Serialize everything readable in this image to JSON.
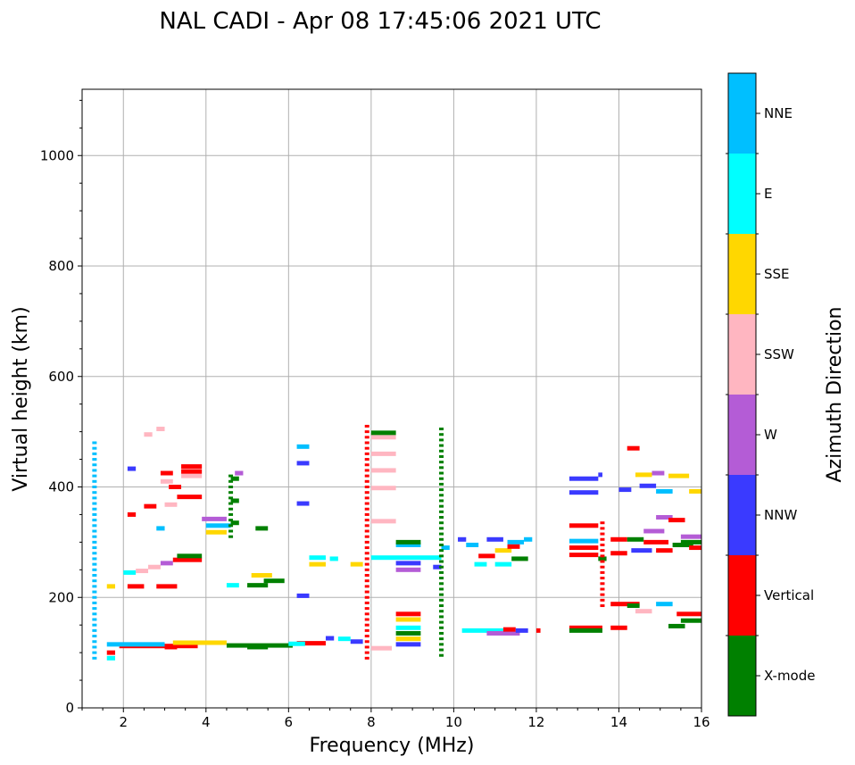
{
  "chart_data": {
    "type": "scatter",
    "title": "NAL CADI - Apr 08 17:45:06 2021 UTC",
    "xlabel": "Frequency (MHz)",
    "ylabel": "Virtual height (km)",
    "xlim": [
      1,
      16
    ],
    "ylim": [
      0,
      1120
    ],
    "xticks": [
      2,
      4,
      6,
      8,
      10,
      12,
      14,
      16
    ],
    "yticks": [
      0,
      200,
      400,
      600,
      800,
      1000
    ],
    "grid": true,
    "colorbar": {
      "label": "Azimuth Direction",
      "categories": [
        {
          "name": "X-mode",
          "color": "#008000"
        },
        {
          "name": "Vertical",
          "color": "#ff0000"
        },
        {
          "name": "NNW",
          "color": "#3a3aff"
        },
        {
          "name": "W",
          "color": "#b45cd6"
        },
        {
          "name": "SSW",
          "color": "#ffb6c1"
        },
        {
          "name": "SSE",
          "color": "#ffd700"
        },
        {
          "name": "E",
          "color": "#00ffff"
        },
        {
          "name": "NNE",
          "color": "#00bfff"
        }
      ]
    },
    "segments": [
      {
        "f1": 1.9,
        "f2": 3.8,
        "h": 112,
        "c": "Vertical"
      },
      {
        "f1": 3.0,
        "f2": 3.3,
        "h": 110,
        "c": "Vertical"
      },
      {
        "f1": 1.6,
        "f2": 3.0,
        "h": 115,
        "c": "NNE"
      },
      {
        "f1": 3.2,
        "f2": 4.5,
        "h": 118,
        "c": "SSE"
      },
      {
        "f1": 4.5,
        "f2": 6.1,
        "h": 113,
        "c": "X-mode"
      },
      {
        "f1": 5.0,
        "f2": 5.5,
        "h": 110,
        "c": "X-mode"
      },
      {
        "f1": 6.2,
        "f2": 6.9,
        "h": 117,
        "c": "Vertical"
      },
      {
        "f1": 6.0,
        "f2": 6.4,
        "h": 116,
        "c": "E"
      },
      {
        "f1": 6.9,
        "f2": 7.1,
        "h": 126,
        "c": "NNW"
      },
      {
        "f1": 7.5,
        "f2": 7.8,
        "h": 120,
        "c": "NNW"
      },
      {
        "f1": 7.2,
        "f2": 7.5,
        "h": 125,
        "c": "E"
      },
      {
        "f1": 1.6,
        "f2": 1.8,
        "h": 100,
        "c": "Vertical"
      },
      {
        "f1": 1.6,
        "f2": 1.8,
        "h": 90,
        "c": "E"
      },
      {
        "f1": 8.0,
        "f2": 8.5,
        "h": 108,
        "c": "SSW"
      },
      {
        "f1": 8.6,
        "f2": 9.2,
        "h": 170,
        "c": "Vertical"
      },
      {
        "f1": 8.6,
        "f2": 9.2,
        "h": 160,
        "c": "SSE"
      },
      {
        "f1": 8.6,
        "f2": 9.2,
        "h": 145,
        "c": "E"
      },
      {
        "f1": 8.6,
        "f2": 9.2,
        "h": 135,
        "c": "X-mode"
      },
      {
        "f1": 8.6,
        "f2": 9.2,
        "h": 125,
        "c": "SSE"
      },
      {
        "f1": 8.6,
        "f2": 9.2,
        "h": 115,
        "c": "NNW"
      },
      {
        "f1": 10.2,
        "f2": 11.2,
        "h": 140,
        "c": "E"
      },
      {
        "f1": 10.8,
        "f2": 11.6,
        "h": 135,
        "c": "W"
      },
      {
        "f1": 11.2,
        "f2": 11.5,
        "h": 142,
        "c": "Vertical"
      },
      {
        "f1": 11.5,
        "f2": 11.8,
        "h": 140,
        "c": "NNW"
      },
      {
        "f1": 12.0,
        "f2": 12.1,
        "h": 140,
        "c": "Vertical"
      },
      {
        "f1": 12.8,
        "f2": 13.6,
        "h": 145,
        "c": "Vertical"
      },
      {
        "f1": 12.8,
        "f2": 13.6,
        "h": 140,
        "c": "X-mode"
      },
      {
        "f1": 13.8,
        "f2": 14.2,
        "h": 145,
        "c": "Vertical"
      },
      {
        "f1": 13.8,
        "f2": 14.5,
        "h": 188,
        "c": "Vertical"
      },
      {
        "f1": 14.2,
        "f2": 14.5,
        "h": 185,
        "c": "X-mode"
      },
      {
        "f1": 14.4,
        "f2": 14.8,
        "h": 175,
        "c": "SSW"
      },
      {
        "f1": 14.9,
        "f2": 15.3,
        "h": 188,
        "c": "NNE"
      },
      {
        "f1": 15.4,
        "f2": 16.0,
        "h": 170,
        "c": "Vertical"
      },
      {
        "f1": 15.5,
        "f2": 16.0,
        "h": 158,
        "c": "X-mode"
      },
      {
        "f1": 15.2,
        "f2": 15.6,
        "h": 148,
        "c": "X-mode"
      },
      {
        "f1": 1.6,
        "f2": 1.8,
        "h": 220,
        "c": "SSE"
      },
      {
        "f1": 2.1,
        "f2": 2.5,
        "h": 220,
        "c": "Vertical"
      },
      {
        "f1": 2.8,
        "f2": 3.3,
        "h": 220,
        "c": "Vertical"
      },
      {
        "f1": 2.0,
        "f2": 2.3,
        "h": 245,
        "c": "E"
      },
      {
        "f1": 2.3,
        "f2": 2.6,
        "h": 248,
        "c": "SSW"
      },
      {
        "f1": 2.6,
        "f2": 2.9,
        "h": 255,
        "c": "SSW"
      },
      {
        "f1": 2.9,
        "f2": 3.2,
        "h": 262,
        "c": "W"
      },
      {
        "f1": 3.2,
        "f2": 3.9,
        "h": 268,
        "c": "Vertical"
      },
      {
        "f1": 3.3,
        "f2": 3.9,
        "h": 275,
        "c": "X-mode"
      },
      {
        "f1": 4.0,
        "f2": 4.5,
        "h": 318,
        "c": "SSE"
      },
      {
        "f1": 4.0,
        "f2": 4.6,
        "h": 330,
        "c": "NNE"
      },
      {
        "f1": 3.9,
        "f2": 4.5,
        "h": 342,
        "c": "W"
      },
      {
        "f1": 4.6,
        "f2": 4.8,
        "h": 335,
        "c": "X-mode"
      },
      {
        "f1": 4.5,
        "f2": 4.8,
        "h": 222,
        "c": "E"
      },
      {
        "f1": 5.0,
        "f2": 5.5,
        "h": 222,
        "c": "X-mode"
      },
      {
        "f1": 5.4,
        "f2": 5.9,
        "h": 230,
        "c": "X-mode"
      },
      {
        "f1": 5.1,
        "f2": 5.6,
        "h": 240,
        "c": "SSE"
      },
      {
        "f1": 5.2,
        "f2": 5.5,
        "h": 325,
        "c": "X-mode"
      },
      {
        "f1": 3.3,
        "f2": 3.9,
        "h": 382,
        "c": "Vertical"
      },
      {
        "f1": 3.0,
        "f2": 3.3,
        "h": 368,
        "c": "SSW"
      },
      {
        "f1": 3.4,
        "f2": 3.9,
        "h": 420,
        "c": "SSW"
      },
      {
        "f1": 3.4,
        "f2": 3.9,
        "h": 428,
        "c": "Vertical"
      },
      {
        "f1": 3.4,
        "f2": 3.9,
        "h": 437,
        "c": "Vertical"
      },
      {
        "f1": 2.9,
        "f2": 3.2,
        "h": 425,
        "c": "Vertical"
      },
      {
        "f1": 2.9,
        "f2": 3.2,
        "h": 410,
        "c": "SSW"
      },
      {
        "f1": 3.1,
        "f2": 3.4,
        "h": 400,
        "c": "Vertical"
      },
      {
        "f1": 2.1,
        "f2": 2.3,
        "h": 350,
        "c": "Vertical"
      },
      {
        "f1": 2.5,
        "f2": 2.8,
        "h": 365,
        "c": "Vertical"
      },
      {
        "f1": 2.8,
        "f2": 3.0,
        "h": 325,
        "c": "NNE"
      },
      {
        "f1": 2.5,
        "f2": 2.7,
        "h": 495,
        "c": "SSW"
      },
      {
        "f1": 2.8,
        "f2": 3.0,
        "h": 505,
        "c": "SSW"
      },
      {
        "f1": 4.6,
        "f2": 4.8,
        "h": 415,
        "c": "X-mode"
      },
      {
        "f1": 4.7,
        "f2": 4.9,
        "h": 425,
        "c": "W"
      },
      {
        "f1": 4.6,
        "f2": 4.8,
        "h": 375,
        "c": "X-mode"
      },
      {
        "f1": 2.1,
        "f2": 2.3,
        "h": 433,
        "c": "NNW"
      },
      {
        "f1": 6.2,
        "f2": 6.5,
        "h": 370,
        "c": "NNW"
      },
      {
        "f1": 6.2,
        "f2": 6.5,
        "h": 443,
        "c": "NNW"
      },
      {
        "f1": 6.2,
        "f2": 6.5,
        "h": 473,
        "c": "NNE"
      },
      {
        "f1": 6.2,
        "f2": 6.5,
        "h": 203,
        "c": "NNW"
      },
      {
        "f1": 6.5,
        "f2": 6.9,
        "h": 272,
        "c": "E"
      },
      {
        "f1": 6.5,
        "f2": 6.9,
        "h": 260,
        "c": "SSE"
      },
      {
        "f1": 7.0,
        "f2": 7.2,
        "h": 270,
        "c": "E"
      },
      {
        "f1": 7.5,
        "f2": 7.8,
        "h": 260,
        "c": "SSE"
      },
      {
        "f1": 8.0,
        "f2": 8.6,
        "h": 490,
        "c": "SSW"
      },
      {
        "f1": 8.0,
        "f2": 8.6,
        "h": 498,
        "c": "X-mode"
      },
      {
        "f1": 8.0,
        "f2": 8.6,
        "h": 430,
        "c": "SSW"
      },
      {
        "f1": 8.0,
        "f2": 8.6,
        "h": 460,
        "c": "SSW"
      },
      {
        "f1": 8.0,
        "f2": 8.6,
        "h": 398,
        "c": "SSW"
      },
      {
        "f1": 8.0,
        "f2": 8.6,
        "h": 338,
        "c": "SSW"
      },
      {
        "f1": 8.0,
        "f2": 9.7,
        "h": 272,
        "c": "E"
      },
      {
        "f1": 8.6,
        "f2": 9.2,
        "h": 295,
        "c": "NNE"
      },
      {
        "f1": 8.6,
        "f2": 9.2,
        "h": 300,
        "c": "X-mode"
      },
      {
        "f1": 8.6,
        "f2": 9.2,
        "h": 262,
        "c": "NNW"
      },
      {
        "f1": 8.6,
        "f2": 9.2,
        "h": 250,
        "c": "W"
      },
      {
        "f1": 9.5,
        "f2": 9.7,
        "h": 255,
        "c": "NNW"
      },
      {
        "f1": 9.7,
        "f2": 9.9,
        "h": 290,
        "c": "NNE"
      },
      {
        "f1": 10.3,
        "f2": 10.6,
        "h": 295,
        "c": "NNE"
      },
      {
        "f1": 10.5,
        "f2": 10.8,
        "h": 260,
        "c": "E"
      },
      {
        "f1": 10.6,
        "f2": 11.0,
        "h": 275,
        "c": "Vertical"
      },
      {
        "f1": 10.8,
        "f2": 11.2,
        "h": 305,
        "c": "NNW"
      },
      {
        "f1": 11.0,
        "f2": 11.4,
        "h": 260,
        "c": "E"
      },
      {
        "f1": 11.0,
        "f2": 11.4,
        "h": 285,
        "c": "SSE"
      },
      {
        "f1": 11.3,
        "f2": 11.7,
        "h": 300,
        "c": "NNE"
      },
      {
        "f1": 11.3,
        "f2": 11.6,
        "h": 292,
        "c": "Vertical"
      },
      {
        "f1": 11.4,
        "f2": 11.8,
        "h": 270,
        "c": "X-mode"
      },
      {
        "f1": 11.7,
        "f2": 11.9,
        "h": 305,
        "c": "NNE"
      },
      {
        "f1": 10.1,
        "f2": 10.3,
        "h": 305,
        "c": "NNW"
      },
      {
        "f1": 12.8,
        "f2": 13.5,
        "h": 302,
        "c": "NNE"
      },
      {
        "f1": 12.8,
        "f2": 13.5,
        "h": 277,
        "c": "Vertical"
      },
      {
        "f1": 12.8,
        "f2": 13.5,
        "h": 290,
        "c": "Vertical"
      },
      {
        "f1": 13.5,
        "f2": 13.7,
        "h": 270,
        "c": "X-mode"
      },
      {
        "f1": 13.8,
        "f2": 14.2,
        "h": 305,
        "c": "Vertical"
      },
      {
        "f1": 13.8,
        "f2": 14.2,
        "h": 280,
        "c": "Vertical"
      },
      {
        "f1": 14.2,
        "f2": 14.6,
        "h": 305,
        "c": "X-mode"
      },
      {
        "f1": 14.3,
        "f2": 14.8,
        "h": 285,
        "c": "NNW"
      },
      {
        "f1": 14.6,
        "f2": 15.2,
        "h": 300,
        "c": "Vertical"
      },
      {
        "f1": 14.9,
        "f2": 15.3,
        "h": 285,
        "c": "Vertical"
      },
      {
        "f1": 15.3,
        "f2": 15.8,
        "h": 295,
        "c": "X-mode"
      },
      {
        "f1": 15.5,
        "f2": 16.0,
        "h": 310,
        "c": "W"
      },
      {
        "f1": 15.5,
        "f2": 16.0,
        "h": 300,
        "c": "X-mode"
      },
      {
        "f1": 15.7,
        "f2": 16.0,
        "h": 290,
        "c": "Vertical"
      },
      {
        "f1": 14.6,
        "f2": 15.1,
        "h": 320,
        "c": "W"
      },
      {
        "f1": 14.9,
        "f2": 15.3,
        "h": 345,
        "c": "W"
      },
      {
        "f1": 15.2,
        "f2": 15.6,
        "h": 340,
        "c": "Vertical"
      },
      {
        "f1": 12.8,
        "f2": 13.5,
        "h": 415,
        "c": "NNW"
      },
      {
        "f1": 12.8,
        "f2": 13.5,
        "h": 390,
        "c": "NNW"
      },
      {
        "f1": 13.5,
        "f2": 13.6,
        "h": 422,
        "c": "NNW"
      },
      {
        "f1": 14.0,
        "f2": 14.3,
        "h": 395,
        "c": "NNW"
      },
      {
        "f1": 14.2,
        "f2": 14.5,
        "h": 470,
        "c": "Vertical"
      },
      {
        "f1": 14.5,
        "f2": 14.9,
        "h": 402,
        "c": "NNW"
      },
      {
        "f1": 14.4,
        "f2": 14.8,
        "h": 422,
        "c": "SSE"
      },
      {
        "f1": 14.8,
        "f2": 15.1,
        "h": 425,
        "c": "W"
      },
      {
        "f1": 15.2,
        "f2": 15.7,
        "h": 420,
        "c": "SSE"
      },
      {
        "f1": 14.9,
        "f2": 15.3,
        "h": 392,
        "c": "NNE"
      },
      {
        "f1": 15.7,
        "f2": 16.0,
        "h": 392,
        "c": "SSE"
      },
      {
        "f1": 12.8,
        "f2": 13.5,
        "h": 330,
        "c": "Vertical"
      }
    ],
    "vertical_strips": [
      {
        "f": 7.9,
        "h1": 90,
        "h2": 510,
        "c": "Vertical"
      },
      {
        "f": 9.7,
        "h1": 95,
        "h2": 510,
        "c": "X-mode"
      },
      {
        "f": 1.3,
        "h1": 90,
        "h2": 480,
        "c": "NNE"
      },
      {
        "f": 4.6,
        "h1": 310,
        "h2": 420,
        "c": "X-mode"
      },
      {
        "f": 13.6,
        "h1": 185,
        "h2": 340,
        "c": "Vertical"
      }
    ]
  }
}
